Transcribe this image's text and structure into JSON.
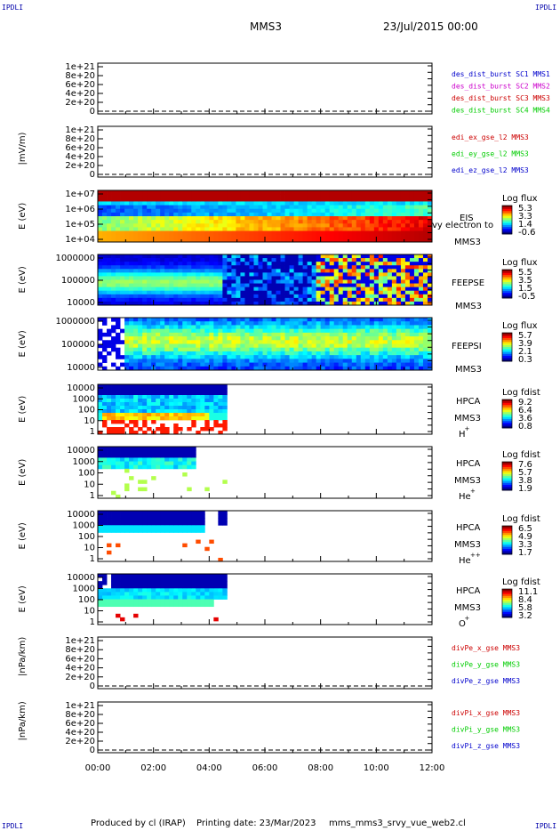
{
  "corners": {
    "tl": "IPDLI",
    "tr": "IPDLI",
    "bl": "IPDLI",
    "br": "IPDLI"
  },
  "header": {
    "mission": "MMS3",
    "date": "23/Jul/2015 00:00"
  },
  "footer": {
    "produced": "Produced by cl (IRAP)",
    "printed": "Printing date: 23/Mar/2023",
    "file": "mms_mms3_srvy_vue_web2.cl"
  },
  "colors": {
    "blue": "#0000cc",
    "magenta": "#cc00cc",
    "red": "#cc0000",
    "green": "#00cc00"
  },
  "chart_data": [
    {
      "type": "line",
      "id": "p1",
      "ylabel": "",
      "ticks": [
        "1e+21",
        "8e+20",
        "6e+20",
        "4e+20",
        "2e+20",
        "0"
      ],
      "legend": [
        {
          "name": "des_dist_burst SC1 MMS1",
          "color": "#0000cc"
        },
        {
          "name": "des_dist_burst SC2 MMS2",
          "color": "#cc00cc"
        },
        {
          "name": "des_dist_burst SC3 MMS3",
          "color": "#cc0000"
        },
        {
          "name": "des_dist_burst SC4 MMS4",
          "color": "#00cc00"
        }
      ]
    },
    {
      "type": "line",
      "id": "p2",
      "ylabel": "|mV/m)",
      "ticks": [
        "1e+21",
        "8e+20",
        "6e+20",
        "4e+20",
        "2e+20",
        "0"
      ],
      "legend": [
        {
          "name": "edi_ex_gse_l2 MMS3",
          "color": "#cc0000"
        },
        {
          "name": "edi_ey_gse_l2 MMS3",
          "color": "#00cc00"
        },
        {
          "name": "edi_ez_gse_l2 MMS3",
          "color": "#0000cc"
        }
      ]
    },
    {
      "type": "heatmap",
      "id": "p3",
      "ylabel": "E (eV)",
      "ticks": [
        "1e+07",
        "1e+06",
        "1e+05",
        "1e+04"
      ],
      "labels": [
        "EIS",
        "vy electron to",
        "MMS3"
      ],
      "cbar": {
        "title": "Log flux",
        "ticks": [
          "5.3",
          "3.3",
          "1.4",
          "-0.6"
        ]
      }
    },
    {
      "type": "heatmap",
      "id": "p4",
      "ylabel": "E (eV)",
      "ticks": [
        "1000000",
        "100000",
        "10000"
      ],
      "labels": [
        "FEEPSE",
        "MMS3"
      ],
      "cbar": {
        "title": "Log flux",
        "ticks": [
          "5.5",
          "3.5",
          "1.5",
          "-0.5"
        ]
      }
    },
    {
      "type": "heatmap",
      "id": "p5",
      "ylabel": "E (eV)",
      "ticks": [
        "1000000",
        "100000",
        "10000"
      ],
      "labels": [
        "FEEPSI",
        "MMS3"
      ],
      "cbar": {
        "title": "Log flux",
        "ticks": [
          "5.7",
          "3.9",
          "2.1",
          "0.3"
        ]
      }
    },
    {
      "type": "heatmap",
      "id": "p6",
      "ylabel": "E (eV)",
      "ticks": [
        "10000",
        "1000",
        "100",
        "10",
        "1"
      ],
      "labels": [
        "HPCA",
        "MMS3",
        "H",
        "+"
      ],
      "cbar": {
        "title": "Log fdist",
        "ticks": [
          "9.2",
          "6.4",
          "3.6",
          "0.8"
        ]
      }
    },
    {
      "type": "heatmap",
      "id": "p7",
      "ylabel": "E (eV)",
      "ticks": [
        "10000",
        "1000",
        "100",
        "10",
        "1"
      ],
      "labels": [
        "HPCA",
        "MMS3",
        "He",
        "+"
      ],
      "cbar": {
        "title": "Log fdist",
        "ticks": [
          "7.6",
          "5.7",
          "3.8",
          "1.9"
        ]
      }
    },
    {
      "type": "heatmap",
      "id": "p8",
      "ylabel": "E (eV)",
      "ticks": [
        "10000",
        "1000",
        "100",
        "10",
        "1"
      ],
      "labels": [
        "HPCA",
        "MMS3",
        "He",
        "++"
      ],
      "cbar": {
        "title": "Log fdist",
        "ticks": [
          "6.5",
          "4.9",
          "3.3",
          "1.7"
        ]
      }
    },
    {
      "type": "heatmap",
      "id": "p9",
      "ylabel": "E (eV)",
      "ticks": [
        "10000",
        "1000",
        "100",
        "10",
        "1"
      ],
      "labels": [
        "HPCA",
        "MMS3",
        "O",
        "+"
      ],
      "cbar": {
        "title": "Log fdist",
        "ticks": [
          "11.1",
          "8.4",
          "5.8",
          "3.2"
        ]
      }
    },
    {
      "type": "line",
      "id": "p10",
      "ylabel": "|nPa/km)",
      "ticks": [
        "1e+21",
        "8e+20",
        "6e+20",
        "4e+20",
        "2e+20",
        "0"
      ],
      "legend": [
        {
          "name": "divPe_x_gse MMS3",
          "color": "#cc0000"
        },
        {
          "name": "divPe_y_gse MMS3",
          "color": "#00cc00"
        },
        {
          "name": "divPe_z_gse MMS3",
          "color": "#0000cc"
        }
      ]
    },
    {
      "type": "line",
      "id": "p11",
      "ylabel": "|nPa/km)",
      "ticks": [
        "1e+21",
        "8e+20",
        "6e+20",
        "4e+20",
        "2e+20",
        "0"
      ],
      "legend": [
        {
          "name": "divPi_x_gse MMS3",
          "color": "#cc0000"
        },
        {
          "name": "divPi_y_gse MMS3",
          "color": "#00cc00"
        },
        {
          "name": "divPi_z_gse MMS3",
          "color": "#0000cc"
        }
      ]
    }
  ],
  "time_axis": {
    "ticks": [
      "00:00",
      "02:00",
      "04:00",
      "06:00",
      "08:00",
      "10:00",
      "12:00"
    ],
    "range_hours": [
      0,
      12
    ]
  }
}
